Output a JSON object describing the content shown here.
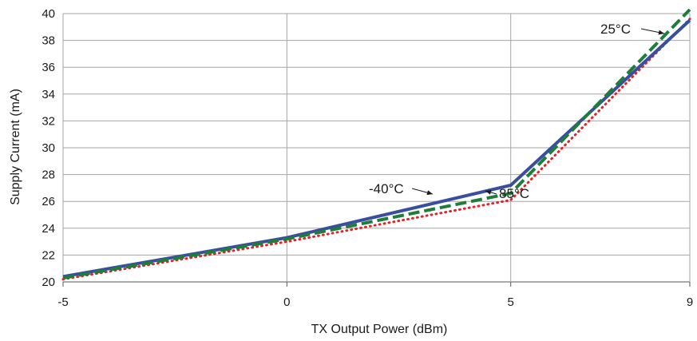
{
  "chart_data": {
    "type": "line",
    "title": "",
    "xlabel": "TX Output Power (dBm)",
    "ylabel": "Supply Current (mA)",
    "xlim": [
      -5,
      9
    ],
    "ylim": [
      20,
      40
    ],
    "x_ticks": [
      -5,
      0,
      5,
      9
    ],
    "y_ticks": [
      20,
      22,
      24,
      26,
      28,
      30,
      32,
      34,
      36,
      38,
      40
    ],
    "grid": "horizontal",
    "legend": "none",
    "series": [
      {
        "label": "-40°C",
        "color": "#3a4ea0",
        "style": "solid",
        "x": [
          -5,
          0,
          5,
          9
        ],
        "y": [
          20.4,
          23.3,
          27.2,
          39.5
        ]
      },
      {
        "label": "25°C",
        "color": "#1e7d3a",
        "style": "dashed",
        "x": [
          -5,
          0,
          5,
          9
        ],
        "y": [
          20.3,
          23.2,
          26.6,
          40.3
        ]
      },
      {
        "label": "85°C",
        "color": "#e0242c",
        "style": "dotted",
        "x": [
          -5,
          0,
          5,
          9
        ],
        "y": [
          20.2,
          23.0,
          26.1,
          39.6
        ]
      }
    ]
  }
}
